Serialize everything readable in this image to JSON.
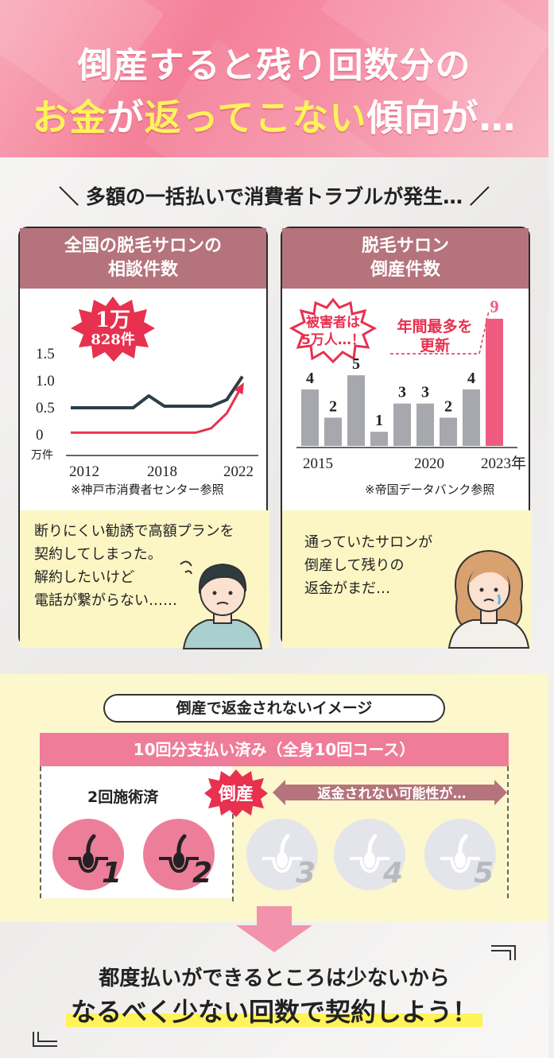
{
  "header": {
    "line1": "倒産すると残り回数分の",
    "line2_highlight": "お金",
    "line2_a": "が",
    "line2_highlight2": "返ってこない",
    "line2_b": "傾向が…"
  },
  "section_title": "＼ 多額の一括払いで消費者トラブルが発生… ／",
  "card_left": {
    "title_line1": "全国の脱毛サロンの",
    "title_line2": "相談件数",
    "badge_line1": "1万",
    "badge_line2": "828件",
    "note": "※神戸市消費者センター参照",
    "speech_lines": [
      "断りにくい勧誘で高額プランを",
      "契約してしまった。",
      "解約したいけど",
      "電話が繋がらない……"
    ]
  },
  "card_right": {
    "title_line1": "脱毛サロン",
    "title_line2": "倒産件数",
    "badge_line1": "被害者は",
    "badge_line2": "5万人…！",
    "record_line1": "年間最多を",
    "record_line2": "更新",
    "note": "※帝国データバンク参照",
    "speech_lines": [
      "通っていたサロンが",
      "倒産して残りの",
      "返金がまだ…"
    ]
  },
  "chart_data": [
    {
      "type": "line",
      "x_tick_labels": [
        "2012",
        "2018",
        "2022"
      ],
      "y_tick_labels": [
        "1.5",
        "1.0",
        "0.5",
        "0"
      ],
      "ylabel": "万件",
      "ylim": [
        0,
        1.5
      ],
      "series": [
        {
          "values": [
            0.5,
            0.5,
            0.5,
            0.5,
            0.5,
            0.72,
            0.53,
            0.53,
            0.53,
            0.53,
            0.65,
            1.08
          ]
        },
        {
          "values": [
            0.04,
            0.04,
            0.04,
            0.04,
            0.04,
            0.04,
            0.04,
            0.04,
            0.04,
            0.12,
            0.4,
            0.92
          ]
        }
      ],
      "colors": [
        "#2c3e48",
        "#e8304f"
      ]
    },
    {
      "type": "bar",
      "categories": [
        "2015",
        "2016",
        "2017",
        "2018",
        "2019",
        "2020",
        "2021",
        "2022",
        "2023"
      ],
      "values": [
        4,
        2,
        5,
        1,
        3,
        3,
        2,
        4,
        9
      ],
      "x_tick_labels": [
        "2015",
        "2020",
        "2023年"
      ],
      "ylim": [
        0,
        9
      ],
      "colors": [
        "#a7a8ad",
        "#ef5b7f"
      ]
    }
  ],
  "payment": {
    "pill": "倒産で返金されないイメージ",
    "course": "10回分支払い済み（全身10回コース）",
    "done": "2回施術済",
    "bankrupt": "倒産",
    "no_refund": "返金されない可能性が…",
    "numbers": [
      "1",
      "2",
      "3",
      "4",
      "5"
    ]
  },
  "conclusion": {
    "line1": "都度払いができるところは少ないから",
    "line2": "なるべく少ない回数で契約しよう！"
  },
  "colors": {
    "pink": "#ef7c98",
    "red": "#e8304f",
    "mauve": "#b5737c",
    "cream": "#fcf7cc",
    "yellow": "#fff35a"
  }
}
